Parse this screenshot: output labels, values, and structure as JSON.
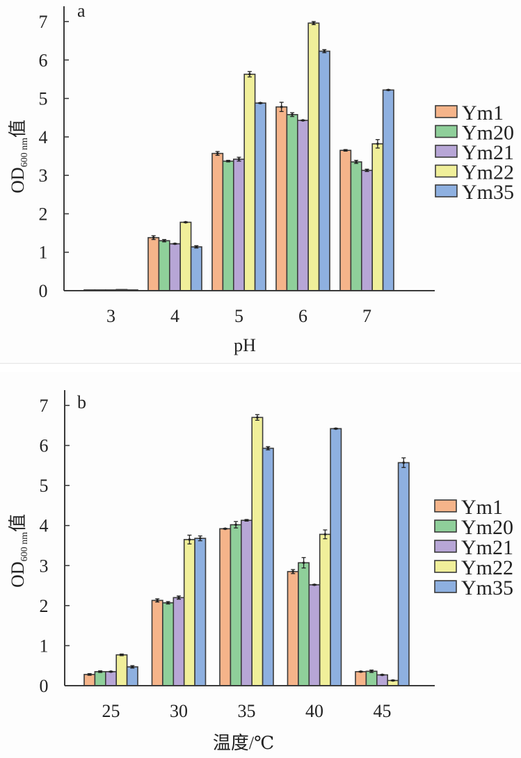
{
  "chart_data": [
    {
      "type": "bar",
      "panel_label": "a",
      "title": "",
      "xlabel": "pH",
      "ylabel": {
        "main": "OD",
        "subscript": "600 nm",
        "suffix": "值"
      },
      "ylim": [
        0,
        7
      ],
      "yticks": [
        0,
        1,
        2,
        3,
        4,
        5,
        6,
        7
      ],
      "categories": [
        "3",
        "4",
        "5",
        "6",
        "7"
      ],
      "legend_position": "right",
      "grid": false,
      "error_bars": true,
      "series": [
        {
          "name": "Ym1",
          "color": "#f5b48a",
          "values": [
            0.02,
            1.38,
            3.57,
            4.78,
            3.65
          ],
          "errors": [
            0.01,
            0.05,
            0.05,
            0.12,
            0.02
          ]
        },
        {
          "name": "Ym20",
          "color": "#8fcf9a",
          "values": [
            0.02,
            1.3,
            3.37,
            4.58,
            3.35
          ],
          "errors": [
            0.01,
            0.03,
            0.02,
            0.05,
            0.04
          ]
        },
        {
          "name": "Ym21",
          "color": "#b7a6d6",
          "values": [
            0.02,
            1.22,
            3.42,
            4.43,
            3.13
          ],
          "errors": [
            0.01,
            0.01,
            0.05,
            0.01,
            0.03
          ]
        },
        {
          "name": "Ym22",
          "color": "#f0ef9a",
          "values": [
            0.03,
            1.78,
            5.63,
            6.96,
            3.82
          ],
          "errors": [
            0.01,
            0.01,
            0.07,
            0.04,
            0.11
          ]
        },
        {
          "name": "Ym35",
          "color": "#8eb0e0",
          "values": [
            0.02,
            1.14,
            4.88,
            6.23,
            5.22
          ],
          "errors": [
            0.01,
            0.03,
            0.01,
            0.04,
            0.01
          ]
        }
      ]
    },
    {
      "type": "bar",
      "panel_label": "b",
      "title": "",
      "xlabel": "温度/℃",
      "ylabel": {
        "main": "OD",
        "subscript": "600 nm",
        "suffix": "值"
      },
      "ylim": [
        0,
        7
      ],
      "yticks": [
        0,
        1,
        2,
        3,
        4,
        5,
        6,
        7
      ],
      "categories": [
        "25",
        "30",
        "35",
        "40",
        "45"
      ],
      "legend_position": "right",
      "grid": false,
      "error_bars": true,
      "series": [
        {
          "name": "Ym1",
          "color": "#f5b48a",
          "values": [
            0.28,
            2.13,
            3.92,
            2.85,
            0.35
          ],
          "errors": [
            0.02,
            0.04,
            0.01,
            0.05,
            0.01
          ]
        },
        {
          "name": "Ym20",
          "color": "#8fcf9a",
          "values": [
            0.35,
            2.07,
            4.02,
            3.07,
            0.36
          ],
          "errors": [
            0.02,
            0.03,
            0.08,
            0.13,
            0.03
          ]
        },
        {
          "name": "Ym21",
          "color": "#b7a6d6",
          "values": [
            0.35,
            2.2,
            4.13,
            2.52,
            0.27
          ],
          "errors": [
            0.01,
            0.04,
            0.02,
            0.01,
            0.01
          ]
        },
        {
          "name": "Ym22",
          "color": "#f0ef9a",
          "values": [
            0.77,
            3.65,
            6.7,
            3.78,
            0.13
          ],
          "errors": [
            0.02,
            0.11,
            0.07,
            0.11,
            0.01
          ]
        },
        {
          "name": "Ym35",
          "color": "#8eb0e0",
          "values": [
            0.47,
            3.68,
            5.93,
            6.42,
            5.57
          ],
          "errors": [
            0.03,
            0.06,
            0.04,
            0.01,
            0.12
          ]
        }
      ]
    }
  ]
}
